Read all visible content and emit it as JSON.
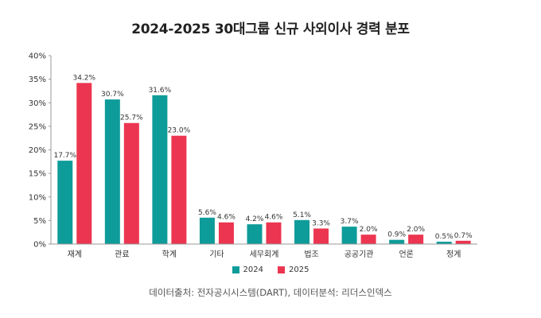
{
  "title": "2024-2025 30대그룹 신규 사외이사 경력 분포",
  "source": "데이터출처: 전자공시시스템(DART), 데이터분석: 리더스인덱스",
  "colors": {
    "s2024": "#0e9c9a",
    "s2025": "#ec3550",
    "axis": "#999999",
    "text": "#333333"
  },
  "chart_data": {
    "type": "bar",
    "title": "2024-2025 30대그룹 신규 사외이사 경력 분포",
    "categories": [
      "재계",
      "관료",
      "학계",
      "기타",
      "세무회계",
      "법조",
      "공공기관",
      "언론",
      "정계"
    ],
    "series": [
      {
        "name": "2024",
        "values": [
          17.7,
          30.7,
          31.6,
          5.6,
          4.2,
          5.1,
          3.7,
          0.9,
          0.5
        ],
        "labels": [
          "17.7%",
          "30.7%",
          "31.6%",
          "5.6%",
          "4.2%",
          "5.1%",
          "3.7%",
          "0.9%",
          "0.5%"
        ]
      },
      {
        "name": "2025",
        "values": [
          34.2,
          25.7,
          23.0,
          4.6,
          4.6,
          3.3,
          2.0,
          2.0,
          0.7
        ],
        "labels": [
          "34.2%",
          "25.7%",
          "23.0%",
          "4.6%",
          "4.6%",
          "3.3%",
          "2.0%",
          "2.0%",
          "0.7%"
        ]
      }
    ],
    "ylim": [
      0,
      40
    ],
    "yticks": [
      "0%",
      "5%",
      "10%",
      "15%",
      "20%",
      "25%",
      "30%",
      "35%",
      "40%"
    ],
    "grid": false,
    "legend": "bottom-center"
  }
}
